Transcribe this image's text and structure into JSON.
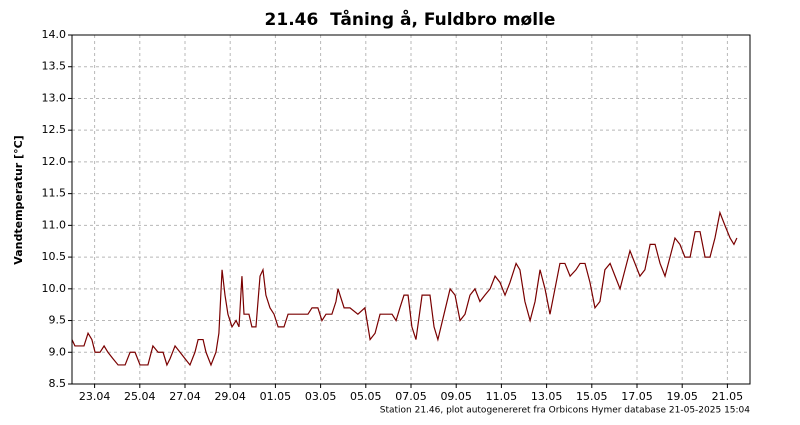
{
  "chart_data": {
    "type": "line",
    "title": "21.46  Tåning å, Fuldbro mølle",
    "ylabel": "Vandtemperatur [°C]",
    "source": "Station 21.46, plot autogenereret fra Orbicons Hymer database 21-05-2025 15:04",
    "color": "#7a0000",
    "grid": true,
    "xlim": [
      0,
      30
    ],
    "xticks": [
      {
        "value": 1,
        "label": "23.04"
      },
      {
        "value": 3,
        "label": "25.04"
      },
      {
        "value": 5,
        "label": "27.04"
      },
      {
        "value": 7,
        "label": "29.04"
      },
      {
        "value": 9,
        "label": "01.05"
      },
      {
        "value": 11,
        "label": "03.05"
      },
      {
        "value": 13,
        "label": "05.05"
      },
      {
        "value": 15,
        "label": "07.05"
      },
      {
        "value": 17,
        "label": "09.05"
      },
      {
        "value": 19,
        "label": "11.05"
      },
      {
        "value": 21,
        "label": "13.05"
      },
      {
        "value": 23,
        "label": "15.05"
      },
      {
        "value": 25,
        "label": "17.05"
      },
      {
        "value": 27,
        "label": "19.05"
      },
      {
        "value": 29,
        "label": "21.05"
      }
    ],
    "ylim": [
      8.5,
      14
    ],
    "yticks": [
      8.5,
      {
        "value": 9,
        "label": "9.0"
      },
      9.5,
      {
        "value": 10,
        "label": "10.0"
      },
      10.5,
      {
        "value": 11,
        "label": "11.0"
      },
      11.5,
      {
        "value": 12,
        "label": "12.0"
      },
      12.5,
      {
        "value": 13,
        "label": "13.0"
      },
      13.5,
      {
        "value": 14,
        "label": "14.0"
      }
    ],
    "x": [
      0,
      0.13,
      0.53,
      0.71,
      0.88,
      1.02,
      1.24,
      1.42,
      1.59,
      1.81,
      2.04,
      2.35,
      2.57,
      2.79,
      3.01,
      3.36,
      3.58,
      3.81,
      4.03,
      4.2,
      4.34,
      4.56,
      4.78,
      5.0,
      5.22,
      5.44,
      5.58,
      5.8,
      5.93,
      6.15,
      6.37,
      6.5,
      6.64,
      6.77,
      6.9,
      7.08,
      7.26,
      7.39,
      7.52,
      7.61,
      7.83,
      7.96,
      8.14,
      8.32,
      8.45,
      8.58,
      8.76,
      8.94,
      9.12,
      9.38,
      9.56,
      10.44,
      10.62,
      10.88,
      11.06,
      11.24,
      11.5,
      11.68,
      11.77,
      12.04,
      12.3,
      12.65,
      12.96,
      13.19,
      13.41,
      13.63,
      14.16,
      14.34,
      14.51,
      14.69,
      14.87,
      15.04,
      15.22,
      15.49,
      15.84,
      16.02,
      16.19,
      16.46,
      16.73,
      16.95,
      17.17,
      17.39,
      17.61,
      17.83,
      18.05,
      18.27,
      18.5,
      18.72,
      18.94,
      19.16,
      19.38,
      19.65,
      19.82,
      20.04,
      20.27,
      20.49,
      20.71,
      20.93,
      21.15,
      21.37,
      21.59,
      21.81,
      22.04,
      22.3,
      22.48,
      22.7,
      22.92,
      23.14,
      23.36,
      23.58,
      23.81,
      24.03,
      24.25,
      24.47,
      24.69,
      24.91,
      25.13,
      25.35,
      25.58,
      25.8,
      26.02,
      26.24,
      26.46,
      26.68,
      26.9,
      27.12,
      27.35,
      27.57,
      27.79,
      28.01,
      28.23,
      28.45,
      28.67,
      28.89,
      29.12,
      29.29,
      29.42
    ],
    "values": [
      9.2,
      9.1,
      9.1,
      9.3,
      9.2,
      9.0,
      9.0,
      9.1,
      9.0,
      8.9,
      8.8,
      8.8,
      9.0,
      9.0,
      8.8,
      8.8,
      9.1,
      9.0,
      9.0,
      8.8,
      8.9,
      9.1,
      9.0,
      8.9,
      8.8,
      9.0,
      9.2,
      9.2,
      9.0,
      8.8,
      9.0,
      9.3,
      10.3,
      9.9,
      9.6,
      9.4,
      9.5,
      9.4,
      10.2,
      9.6,
      9.6,
      9.4,
      9.4,
      10.2,
      10.3,
      9.9,
      9.7,
      9.6,
      9.4,
      9.4,
      9.6,
      9.6,
      9.7,
      9.7,
      9.5,
      9.6,
      9.6,
      9.8,
      10.0,
      9.7,
      9.7,
      9.6,
      9.7,
      9.2,
      9.3,
      9.6,
      9.6,
      9.5,
      9.7,
      9.9,
      9.9,
      9.4,
      9.2,
      9.9,
      9.9,
      9.4,
      9.2,
      9.6,
      10.0,
      9.9,
      9.5,
      9.6,
      9.9,
      10.0,
      9.8,
      9.9,
      10.0,
      10.2,
      10.1,
      9.9,
      10.1,
      10.4,
      10.3,
      9.8,
      9.5,
      9.8,
      10.3,
      10.0,
      9.6,
      10.0,
      10.4,
      10.4,
      10.2,
      10.3,
      10.4,
      10.4,
      10.1,
      9.7,
      9.8,
      10.3,
      10.4,
      10.2,
      10.0,
      10.3,
      10.6,
      10.4,
      10.2,
      10.3,
      10.7,
      10.7,
      10.4,
      10.2,
      10.5,
      10.8,
      10.7,
      10.5,
      10.5,
      10.9,
      10.9,
      10.5,
      10.5,
      10.8,
      11.2,
      11.0,
      10.8,
      10.7,
      10.8
    ]
  }
}
